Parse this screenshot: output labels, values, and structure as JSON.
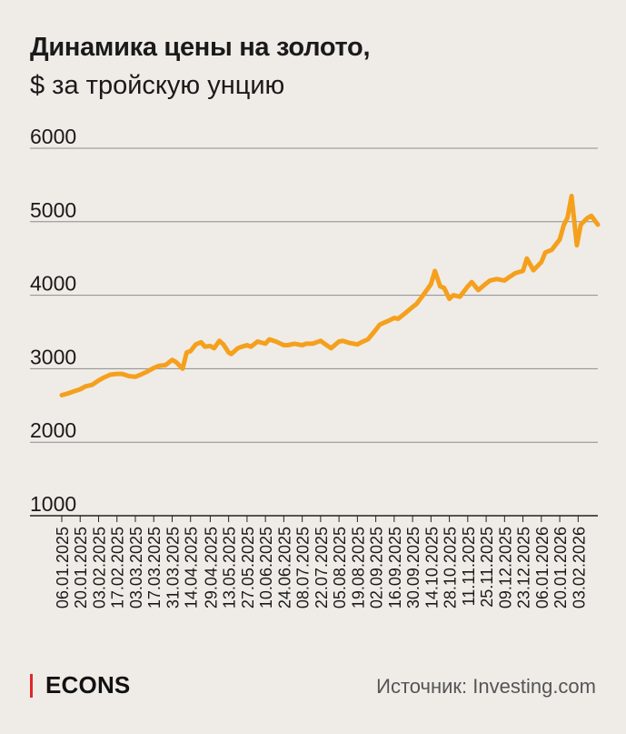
{
  "header": {
    "title": "Динамика цены на золото,",
    "subtitle": "$ за тройскую унцию"
  },
  "footer": {
    "brand": "ECONS",
    "source": "Источник: Investing.com"
  },
  "colors": {
    "line": "#f5a01d",
    "grid": "#8c8c8c",
    "brand_accent": "#e0262b",
    "background": "#efece7"
  },
  "chart_data": {
    "type": "line",
    "title": "Динамика цены на золото,",
    "subtitle": "$ за тройскую унцию",
    "xlabel": "",
    "ylabel": "",
    "ylim": [
      1000,
      6000
    ],
    "yticks": [
      "1000",
      "2000",
      "3000",
      "4000",
      "5000",
      "6000"
    ],
    "xlim": [
      "2025-01-06",
      "2026-02-18"
    ],
    "xticks": [
      "06.01.2025",
      "20.01.2025",
      "03.02.2025",
      "17.02.2025",
      "03.03.2025",
      "17.03.2025",
      "31.03.2025",
      "14.04.2025",
      "29.04.2025",
      "13.05.2025",
      "27.05.2025",
      "10.06.2025",
      "24.06.2025",
      "08.07.2025",
      "22.07.2025",
      "05.08.2025",
      "19.08.2025",
      "02.09.2025",
      "16.09.2025",
      "30.09.2025",
      "14.10.2025",
      "28.10.2025",
      "11.11.2025",
      "25.11.2025",
      "09.12.2025",
      "23.12.2025",
      "06.01.2026",
      "20.01.2026",
      "03.02.2026"
    ],
    "grid": true,
    "series": [
      {
        "x": [
          "2025-01-06",
          "2025-01-10",
          "2025-01-15",
          "2025-01-20",
          "2025-01-24",
          "2025-01-29",
          "2025-02-03",
          "2025-02-07",
          "2025-02-12",
          "2025-02-17",
          "2025-02-21",
          "2025-02-26",
          "2025-03-03",
          "2025-03-07",
          "2025-03-12",
          "2025-03-17",
          "2025-03-21",
          "2025-03-26",
          "2025-03-31",
          "2025-04-03",
          "2025-04-08",
          "2025-04-11",
          "2025-04-14",
          "2025-04-18",
          "2025-04-22",
          "2025-04-25",
          "2025-04-29",
          "2025-05-02",
          "2025-05-06",
          "2025-05-09",
          "2025-05-13",
          "2025-05-15",
          "2025-05-20",
          "2025-05-23",
          "2025-05-27",
          "2025-05-30",
          "2025-06-04",
          "2025-06-10",
          "2025-06-13",
          "2025-06-18",
          "2025-06-24",
          "2025-06-27",
          "2025-07-02",
          "2025-07-08",
          "2025-07-11",
          "2025-07-16",
          "2025-07-22",
          "2025-07-25",
          "2025-07-30",
          "2025-08-05",
          "2025-08-08",
          "2025-08-13",
          "2025-08-19",
          "2025-08-22",
          "2025-08-27",
          "2025-09-02",
          "2025-09-05",
          "2025-09-10",
          "2025-09-16",
          "2025-09-19",
          "2025-09-24",
          "2025-09-30",
          "2025-10-03",
          "2025-10-08",
          "2025-10-14",
          "2025-10-17",
          "2025-10-21",
          "2025-10-24",
          "2025-10-28",
          "2025-10-31",
          "2025-11-05",
          "2025-11-11",
          "2025-11-14",
          "2025-11-19",
          "2025-11-25",
          "2025-11-28",
          "2025-12-03",
          "2025-12-09",
          "2025-12-12",
          "2025-12-17",
          "2025-12-23",
          "2025-12-26",
          "2025-12-31",
          "2026-01-06",
          "2026-01-09",
          "2026-01-14",
          "2026-01-20",
          "2026-01-23",
          "2026-01-26",
          "2026-01-29",
          "2026-02-02",
          "2026-02-05",
          "2026-02-10",
          "2026-02-13",
          "2026-02-18"
        ],
        "values": [
          2640,
          2660,
          2690,
          2720,
          2760,
          2780,
          2840,
          2880,
          2920,
          2930,
          2930,
          2900,
          2890,
          2920,
          2960,
          3010,
          3040,
          3050,
          3120,
          3090,
          3000,
          3220,
          3240,
          3330,
          3360,
          3300,
          3310,
          3280,
          3380,
          3330,
          3220,
          3200,
          3280,
          3300,
          3320,
          3300,
          3370,
          3340,
          3400,
          3370,
          3320,
          3320,
          3340,
          3320,
          3340,
          3340,
          3380,
          3340,
          3280,
          3370,
          3380,
          3350,
          3330,
          3360,
          3400,
          3530,
          3600,
          3640,
          3690,
          3680,
          3750,
          3840,
          3880,
          4000,
          4150,
          4330,
          4120,
          4100,
          3950,
          4000,
          3980,
          4120,
          4180,
          4070,
          4160,
          4200,
          4220,
          4200,
          4240,
          4300,
          4330,
          4500,
          4340,
          4450,
          4580,
          4620,
          4760,
          4950,
          5060,
          5350,
          4680,
          4960,
          5050,
          5080,
          4960
        ]
      }
    ]
  }
}
